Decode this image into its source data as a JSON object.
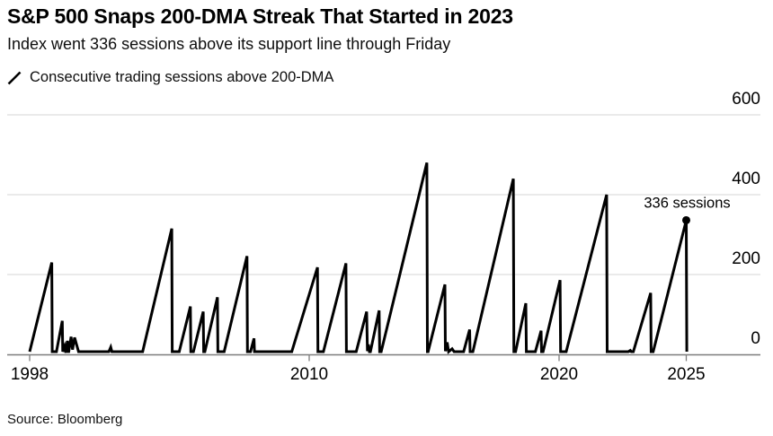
{
  "header": {
    "title": "S&P 500 Snaps 200-DMA Streak That Started in 2023",
    "subtitle": "Index went 336 sessions above its support line through Friday",
    "legend_label": "Consecutive trading sessions above 200-DMA"
  },
  "footer": {
    "source": "Source: Bloomberg"
  },
  "annotation": {
    "text": "336 sessions",
    "year": 2025.0,
    "value": 336
  },
  "colors": {
    "line": "#000000",
    "grid": "#e3e3e3",
    "axis": "#7c7c7c",
    "text": "#000000"
  },
  "chart_data": {
    "type": "line",
    "title": "S&P 500 Snaps 200-DMA Streak That Started in 2023",
    "subtitle": "Index went 336 sessions above its support line through Friday",
    "xlabel": "",
    "ylabel": "Consecutive trading sessions above 200-DMA",
    "x_tick_years": [
      1998,
      2010,
      2020,
      2025
    ],
    "x_tick_labels": [
      "1998",
      "2010",
      "2020",
      "2025"
    ],
    "y_ticks": [
      0,
      200,
      400,
      600
    ],
    "ylim": [
      0,
      600
    ],
    "grid": "horizontal",
    "legend_position": "top-left",
    "end_marker": {
      "year": 2025.0,
      "value": 336,
      "label": "336 sessions"
    },
    "series": [
      {
        "name": "Consecutive trading sessions above 200-DMA",
        "points": [
          [
            1998.0,
            0
          ],
          [
            1998.95,
            230
          ],
          [
            1998.97,
            0
          ],
          [
            1999.15,
            0
          ],
          [
            1999.4,
            84
          ],
          [
            1999.42,
            0
          ],
          [
            1999.5,
            20
          ],
          [
            1999.55,
            4
          ],
          [
            1999.62,
            34
          ],
          [
            1999.67,
            4
          ],
          [
            1999.78,
            44
          ],
          [
            1999.84,
            12
          ],
          [
            1999.93,
            42
          ],
          [
            2000.1,
            0
          ],
          [
            2001.4,
            0
          ],
          [
            2001.48,
            18
          ],
          [
            2001.53,
            0
          ],
          [
            2002.85,
            0
          ],
          [
            2004.1,
            315
          ],
          [
            2004.12,
            0
          ],
          [
            2004.42,
            0
          ],
          [
            2004.9,
            120
          ],
          [
            2004.92,
            0
          ],
          [
            2005.03,
            0
          ],
          [
            2005.45,
            107
          ],
          [
            2005.47,
            0
          ],
          [
            2005.52,
            0
          ],
          [
            2006.06,
            143
          ],
          [
            2006.08,
            0
          ],
          [
            2006.35,
            0
          ],
          [
            2007.33,
            246
          ],
          [
            2007.35,
            0
          ],
          [
            2007.48,
            0
          ],
          [
            2007.63,
            40
          ],
          [
            2007.65,
            0
          ],
          [
            2009.25,
            0
          ],
          [
            2010.33,
            218
          ],
          [
            2010.35,
            0
          ],
          [
            2010.57,
            0
          ],
          [
            2011.47,
            228
          ],
          [
            2011.49,
            0
          ],
          [
            2011.88,
            0
          ],
          [
            2012.3,
            107
          ],
          [
            2012.33,
            8
          ],
          [
            2012.37,
            25
          ],
          [
            2012.41,
            0
          ],
          [
            2012.45,
            0
          ],
          [
            2012.8,
            110
          ],
          [
            2012.82,
            0
          ],
          [
            2012.88,
            0
          ],
          [
            2014.71,
            480
          ],
          [
            2014.73,
            0
          ],
          [
            2014.76,
            0
          ],
          [
            2015.43,
            175
          ],
          [
            2015.45,
            8
          ],
          [
            2015.52,
            30
          ],
          [
            2015.58,
            0
          ],
          [
            2015.72,
            14
          ],
          [
            2015.8,
            0
          ],
          [
            2016.18,
            0
          ],
          [
            2016.42,
            62
          ],
          [
            2016.44,
            0
          ],
          [
            2016.55,
            0
          ],
          [
            2018.17,
            440
          ],
          [
            2018.19,
            0
          ],
          [
            2018.26,
            0
          ],
          [
            2018.67,
            128
          ],
          [
            2018.69,
            0
          ],
          [
            2019.05,
            0
          ],
          [
            2019.28,
            59
          ],
          [
            2019.3,
            0
          ],
          [
            2019.36,
            0
          ],
          [
            2020.04,
            186
          ],
          [
            2020.06,
            0
          ],
          [
            2020.28,
            0
          ],
          [
            2021.87,
            400
          ],
          [
            2021.89,
            0
          ],
          [
            2022.72,
            0
          ],
          [
            2022.8,
            10
          ],
          [
            2022.84,
            0
          ],
          [
            2022.92,
            0
          ],
          [
            2023.6,
            154
          ],
          [
            2023.62,
            0
          ],
          [
            2023.7,
            0
          ],
          [
            2025.0,
            336
          ],
          [
            2025.02,
            0
          ]
        ]
      }
    ]
  }
}
